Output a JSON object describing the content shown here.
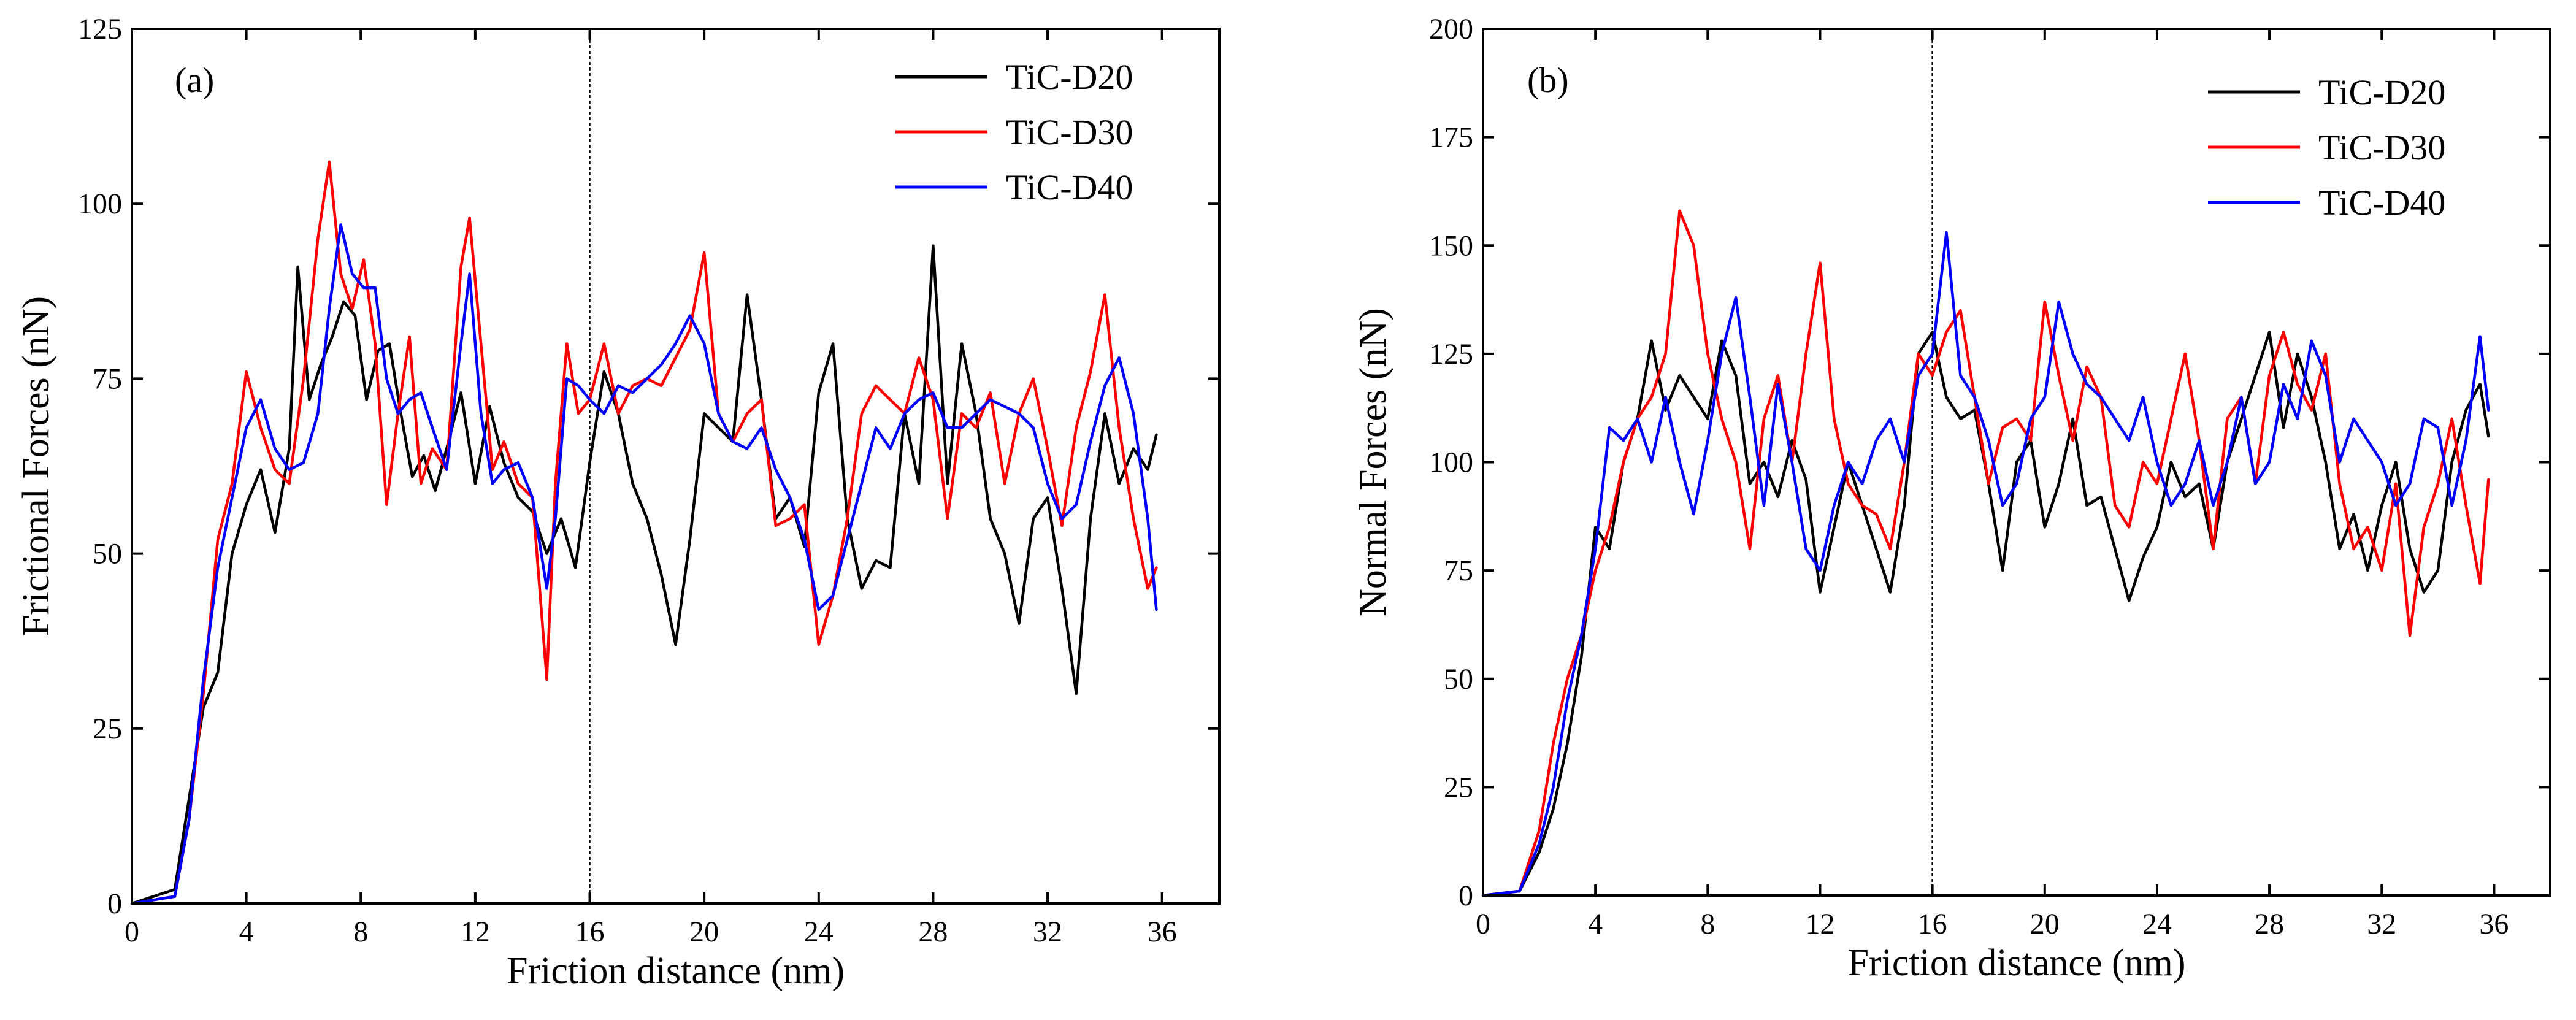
{
  "chart_data": [
    {
      "type": "line",
      "panel_label": "(a)",
      "xlabel": "Friction distance (nm)",
      "ylabel": "Frictional Forces (nN)",
      "xlim": [
        0,
        38
      ],
      "ylim": [
        0,
        125
      ],
      "xticks": [
        0,
        4,
        8,
        12,
        16,
        20,
        24,
        28,
        32,
        36
      ],
      "yticks": [
        0,
        25,
        50,
        75,
        100,
        125
      ],
      "vline_x": 16,
      "legend_position": "top-right",
      "series": [
        {
          "name": "TiC-D20",
          "color": "#000000",
          "x": [
            0,
            1.5,
            2,
            2.5,
            3,
            3.5,
            4,
            4.5,
            5,
            5.5,
            5.8,
            6.2,
            6.6,
            7,
            7.4,
            7.8,
            8.2,
            8.6,
            9,
            9.4,
            9.8,
            10.2,
            10.6,
            11,
            11.5,
            12,
            12.5,
            13,
            13.5,
            14,
            14.5,
            15,
            15.5,
            16,
            16.5,
            17,
            17.5,
            18,
            18.5,
            19,
            19.5,
            20,
            20.5,
            21,
            21.5,
            22,
            22.5,
            23,
            23.5,
            24,
            24.5,
            25,
            25.5,
            26,
            26.5,
            27,
            27.5,
            28,
            28.5,
            29,
            29.5,
            30,
            30.5,
            31,
            31.5,
            32,
            32.5,
            33,
            33.5,
            34,
            34.5,
            35,
            35.5,
            35.8
          ],
          "y": [
            0,
            2,
            15,
            28,
            33,
            50,
            57,
            62,
            53,
            65,
            91,
            72,
            77,
            81,
            86,
            84,
            72,
            79,
            80,
            70,
            61,
            64,
            59,
            65,
            73,
            60,
            71,
            63,
            58,
            56,
            50,
            55,
            48,
            63,
            76,
            70,
            60,
            55,
            47,
            37,
            52,
            70,
            68,
            66,
            87,
            72,
            55,
            58,
            51,
            73,
            80,
            55,
            45,
            49,
            48,
            70,
            60,
            94,
            60,
            80,
            70,
            55,
            50,
            40,
            55,
            58,
            45,
            30,
            55,
            70,
            60,
            65,
            62,
            67
          ]
        },
        {
          "name": "TiC-D30",
          "color": "#ff0000",
          "x": [
            0,
            1.5,
            2,
            2.5,
            3,
            3.5,
            4,
            4.5,
            5,
            5.5,
            6,
            6.5,
            6.9,
            7.3,
            7.7,
            8.1,
            8.5,
            8.9,
            9.3,
            9.7,
            10.1,
            10.5,
            11,
            11.5,
            11.8,
            12.2,
            12.6,
            13,
            13.5,
            14,
            14.5,
            14.8,
            15.2,
            15.6,
            16,
            16.5,
            17,
            17.5,
            18,
            18.5,
            19,
            19.5,
            20,
            20.5,
            21,
            21.5,
            22,
            22.5,
            23,
            23.5,
            24,
            24.5,
            25,
            25.5,
            26,
            26.5,
            27,
            27.5,
            28,
            28.5,
            29,
            29.5,
            30,
            30.5,
            31,
            31.5,
            32,
            32.5,
            33,
            33.5,
            34,
            34.5,
            35,
            35.5,
            35.8
          ],
          "y": [
            0,
            1,
            12,
            30,
            52,
            60,
            76,
            68,
            62,
            60,
            75,
            95,
            106,
            90,
            85,
            92,
            80,
            57,
            70,
            81,
            60,
            65,
            62,
            91,
            98,
            80,
            62,
            66,
            60,
            58,
            32,
            60,
            80,
            70,
            72,
            80,
            70,
            74,
            75,
            74,
            78,
            82,
            93,
            70,
            66,
            70,
            72,
            54,
            55,
            57,
            37,
            44,
            55,
            70,
            74,
            72,
            70,
            78,
            72,
            55,
            70,
            68,
            73,
            60,
            70,
            75,
            65,
            54,
            68,
            76,
            87,
            68,
            55,
            45,
            48
          ]
        },
        {
          "name": "TiC-D40",
          "color": "#0000ff",
          "x": [
            0,
            1.5,
            2,
            2.5,
            3,
            3.5,
            4,
            4.5,
            5,
            5.5,
            6,
            6.5,
            6.9,
            7.3,
            7.7,
            8.1,
            8.5,
            8.9,
            9.3,
            9.7,
            10.1,
            10.5,
            11,
            11.5,
            11.8,
            12.2,
            12.6,
            13,
            13.5,
            14,
            14.5,
            14.8,
            15.2,
            15.6,
            16,
            16.5,
            17,
            17.5,
            18,
            18.5,
            19,
            19.5,
            20,
            20.5,
            21,
            21.5,
            22,
            22.5,
            23,
            23.5,
            24,
            24.5,
            25,
            25.5,
            26,
            26.5,
            27,
            27.5,
            28,
            28.5,
            29,
            29.5,
            30,
            30.5,
            31,
            31.5,
            32,
            32.5,
            33,
            33.5,
            34,
            34.5,
            35,
            35.5,
            35.8
          ],
          "y": [
            0,
            1,
            12,
            32,
            48,
            58,
            68,
            72,
            65,
            62,
            63,
            70,
            85,
            97,
            90,
            88,
            88,
            75,
            70,
            72,
            73,
            68,
            62,
            80,
            90,
            70,
            60,
            62,
            63,
            58,
            45,
            55,
            75,
            74,
            72,
            70,
            74,
            73,
            75,
            77,
            80,
            84,
            80,
            70,
            66,
            65,
            68,
            62,
            58,
            52,
            42,
            44,
            52,
            60,
            68,
            65,
            70,
            72,
            73,
            68,
            68,
            70,
            72,
            71,
            70,
            68,
            60,
            55,
            57,
            66,
            74,
            78,
            70,
            55,
            42
          ]
        }
      ]
    },
    {
      "type": "line",
      "panel_label": "(b)",
      "xlabel": "Friction distance (nm)",
      "ylabel": "Normal Forces (nN)",
      "xlim": [
        0,
        38
      ],
      "ylim": [
        0,
        200
      ],
      "xticks": [
        0,
        4,
        8,
        12,
        16,
        20,
        24,
        28,
        32,
        36
      ],
      "yticks": [
        0,
        25,
        50,
        75,
        100,
        125,
        150,
        175,
        200
      ],
      "vline_x": 16,
      "legend_position": "top-right",
      "series": [
        {
          "name": "TiC-D20",
          "color": "#000000",
          "x": [
            0,
            1.3,
            2,
            2.5,
            3,
            3.5,
            4,
            4.5,
            5,
            5.5,
            6,
            6.5,
            7,
            7.5,
            8,
            8.5,
            9,
            9.5,
            10,
            10.5,
            11,
            11.5,
            12,
            12.5,
            13,
            13.5,
            14,
            14.5,
            15,
            15.5,
            16,
            16.5,
            17,
            17.5,
            18,
            18.5,
            19,
            19.5,
            20,
            20.5,
            21,
            21.5,
            22,
            22.5,
            23,
            23.5,
            24,
            24.5,
            25,
            25.5,
            26,
            26.5,
            27,
            27.5,
            28,
            28.5,
            29,
            29.5,
            30,
            30.5,
            31,
            31.5,
            32,
            32.5,
            33,
            33.5,
            34,
            34.5,
            35,
            35.5,
            35.8
          ],
          "y": [
            0,
            1,
            10,
            20,
            35,
            55,
            85,
            80,
            100,
            110,
            128,
            112,
            120,
            115,
            110,
            128,
            120,
            95,
            100,
            92,
            105,
            96,
            70,
            85,
            100,
            90,
            80,
            70,
            90,
            125,
            130,
            115,
            110,
            112,
            95,
            75,
            100,
            105,
            85,
            95,
            110,
            90,
            92,
            80,
            68,
            78,
            85,
            100,
            92,
            95,
            80,
            100,
            110,
            120,
            130,
            108,
            125,
            115,
            100,
            80,
            88,
            75,
            90,
            100,
            80,
            70,
            75,
            100,
            112,
            118,
            106
          ]
        },
        {
          "name": "TiC-D30",
          "color": "#ff0000",
          "x": [
            0,
            1.3,
            2,
            2.5,
            3,
            3.5,
            4,
            4.5,
            5,
            5.5,
            6,
            6.5,
            7,
            7.5,
            8,
            8.5,
            9,
            9.5,
            10,
            10.5,
            11,
            11.5,
            12,
            12.5,
            13,
            13.5,
            14,
            14.5,
            15,
            15.5,
            16,
            16.5,
            17,
            17.5,
            18,
            18.5,
            19,
            19.5,
            20,
            20.5,
            21,
            21.5,
            22,
            22.5,
            23,
            23.5,
            24,
            24.5,
            25,
            25.5,
            26,
            26.5,
            27,
            27.5,
            28,
            28.5,
            29,
            29.5,
            30,
            30.5,
            31,
            31.5,
            32,
            32.5,
            33,
            33.5,
            34,
            34.5,
            35,
            35.5,
            35.8
          ],
          "y": [
            0,
            1,
            15,
            35,
            50,
            60,
            75,
            85,
            100,
            110,
            115,
            125,
            158,
            150,
            125,
            110,
            100,
            80,
            110,
            120,
            100,
            125,
            146,
            110,
            95,
            90,
            88,
            80,
            100,
            125,
            120,
            130,
            135,
            115,
            95,
            108,
            110,
            105,
            137,
            120,
            105,
            122,
            115,
            90,
            85,
            100,
            95,
            110,
            125,
            105,
            80,
            110,
            115,
            95,
            120,
            130,
            118,
            112,
            125,
            95,
            80,
            85,
            75,
            95,
            60,
            85,
            95,
            110,
            90,
            72,
            96
          ]
        },
        {
          "name": "TiC-D40",
          "color": "#0000ff",
          "x": [
            0,
            1.3,
            2,
            2.5,
            3,
            3.5,
            4,
            4.5,
            5,
            5.5,
            6,
            6.5,
            7,
            7.5,
            8,
            8.5,
            9,
            9.5,
            10,
            10.5,
            11,
            11.5,
            12,
            12.5,
            13,
            13.5,
            14,
            14.5,
            15,
            15.5,
            16,
            16.5,
            17,
            17.5,
            18,
            18.5,
            19,
            19.5,
            20,
            20.5,
            21,
            21.5,
            22,
            22.5,
            23,
            23.5,
            24,
            24.5,
            25,
            25.5,
            26,
            26.5,
            27,
            27.5,
            28,
            28.5,
            29,
            29.5,
            30,
            30.5,
            31,
            31.5,
            32,
            32.5,
            33,
            33.5,
            34,
            34.5,
            35,
            35.5,
            35.8
          ],
          "y": [
            0,
            1,
            12,
            25,
            45,
            60,
            80,
            108,
            105,
            110,
            100,
            115,
            100,
            88,
            105,
            125,
            138,
            115,
            90,
            118,
            100,
            80,
            75,
            90,
            100,
            95,
            105,
            110,
            100,
            120,
            125,
            153,
            120,
            115,
            105,
            90,
            95,
            110,
            115,
            137,
            125,
            118,
            115,
            110,
            105,
            115,
            100,
            90,
            95,
            105,
            90,
            100,
            115,
            95,
            100,
            118,
            110,
            128,
            120,
            100,
            110,
            105,
            100,
            90,
            95,
            110,
            108,
            90,
            105,
            129,
            112
          ]
        }
      ]
    }
  ]
}
